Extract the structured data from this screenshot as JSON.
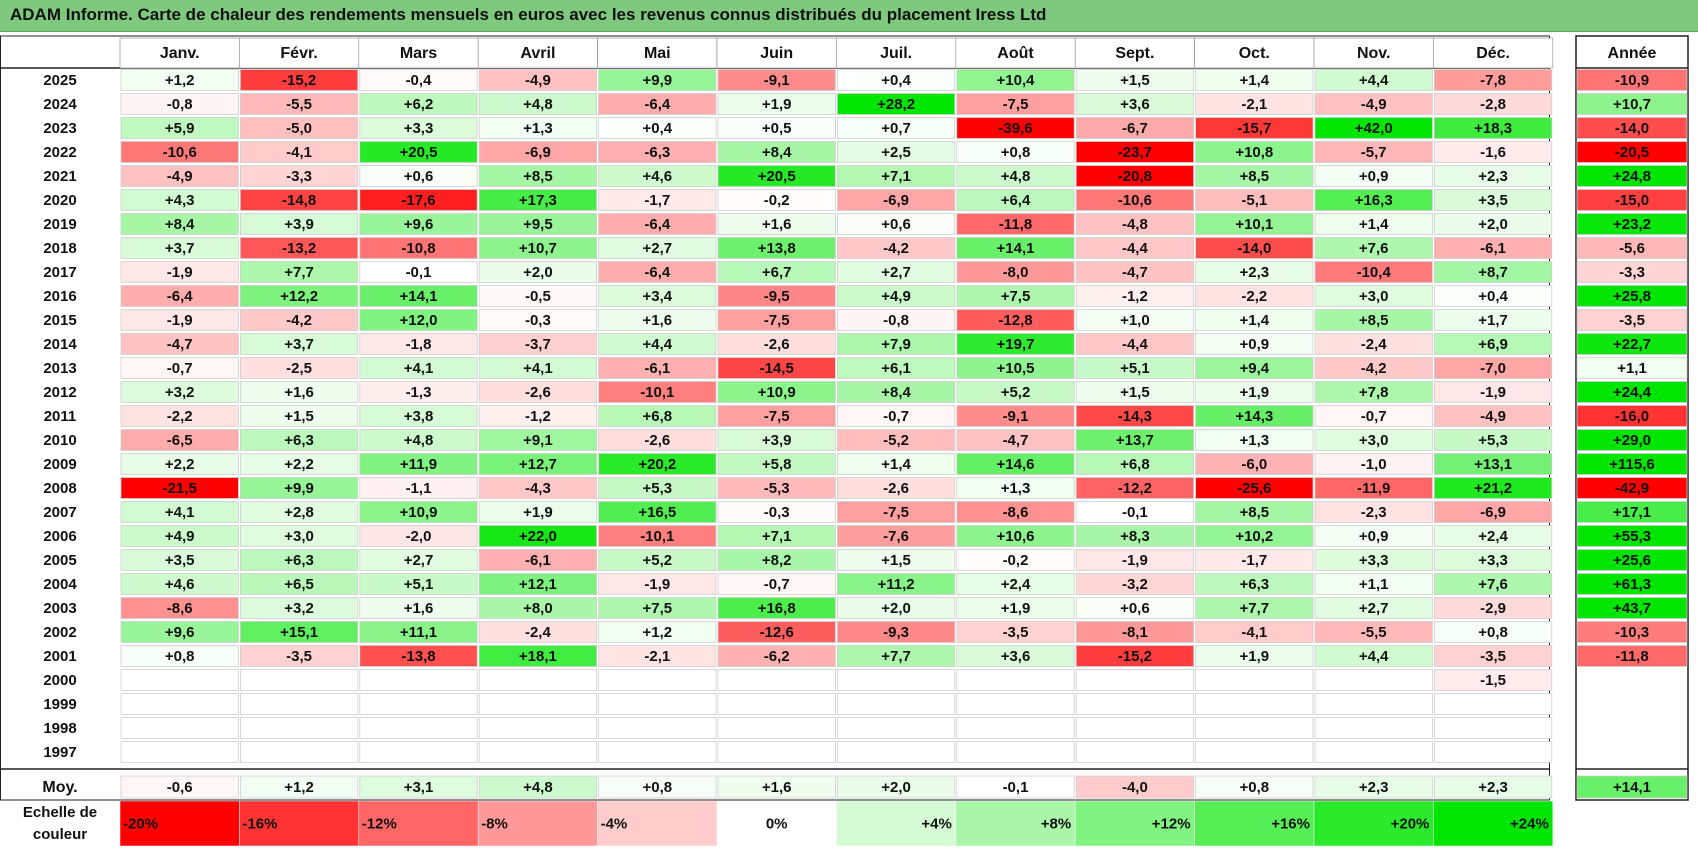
{
  "chart_data": {
    "type": "heatmap",
    "title": "ADAM Informe. Carte de chaleur des rendements mensuels en euros avec les revenus connus distribués du placement Iress Ltd",
    "columns": [
      "Janv.",
      "Févr.",
      "Mars",
      "Avril",
      "Mai",
      "Juin",
      "Juil.",
      "Août",
      "Sept.",
      "Oct.",
      "Nov.",
      "Déc."
    ],
    "year_header": "Année",
    "rows": [
      {
        "year": "2025",
        "values": [
          "+1,2",
          "-15,2",
          "-0,4",
          "-4,9",
          "+9,9",
          "-9,1",
          "+0,4",
          "+10,4",
          "+1,5",
          "+1,4",
          "+4,4",
          "-7,8"
        ],
        "annual": "-10,9"
      },
      {
        "year": "2024",
        "values": [
          "-0,8",
          "-5,5",
          "+6,2",
          "+4,8",
          "-6,4",
          "+1,9",
          "+28,2",
          "-7,5",
          "+3,6",
          "-2,1",
          "-4,9",
          "-2,8"
        ],
        "annual": "+10,7"
      },
      {
        "year": "2023",
        "values": [
          "+5,9",
          "-5,0",
          "+3,3",
          "+1,3",
          "+0,4",
          "+0,5",
          "+0,7",
          "-39,6",
          "-6,7",
          "-15,7",
          "+42,0",
          "+18,3"
        ],
        "annual": "-14,0"
      },
      {
        "year": "2022",
        "values": [
          "-10,6",
          "-4,1",
          "+20,5",
          "-6,9",
          "-6,3",
          "+8,4",
          "+2,5",
          "+0,8",
          "-23,7",
          "+10,8",
          "-5,7",
          "-1,6"
        ],
        "annual": "-20,5"
      },
      {
        "year": "2021",
        "values": [
          "-4,9",
          "-3,3",
          "+0,6",
          "+8,5",
          "+4,6",
          "+20,5",
          "+7,1",
          "+4,8",
          "-20,8",
          "+8,5",
          "+0,9",
          "+2,3"
        ],
        "annual": "+24,8"
      },
      {
        "year": "2020",
        "values": [
          "+4,3",
          "-14,8",
          "-17,6",
          "+17,3",
          "-1,7",
          "-0,2",
          "-6,9",
          "+6,4",
          "-10,6",
          "-5,1",
          "+16,3",
          "+3,5"
        ],
        "annual": "-15,0"
      },
      {
        "year": "2019",
        "values": [
          "+8,4",
          "+3,9",
          "+9,6",
          "+9,5",
          "-6,4",
          "+1,6",
          "+0,6",
          "-11,8",
          "-4,8",
          "+10,1",
          "+1,4",
          "+2,0"
        ],
        "annual": "+23,2"
      },
      {
        "year": "2018",
        "values": [
          "+3,7",
          "-13,2",
          "-10,8",
          "+10,7",
          "+2,7",
          "+13,8",
          "-4,2",
          "+14,1",
          "-4,4",
          "-14,0",
          "+7,6",
          "-6,1"
        ],
        "annual": "-5,6"
      },
      {
        "year": "2017",
        "values": [
          "-1,9",
          "+7,7",
          "-0,1",
          "+2,0",
          "-6,4",
          "+6,7",
          "+2,7",
          "-8,0",
          "-4,7",
          "+2,3",
          "-10,4",
          "+8,7"
        ],
        "annual": "-3,3"
      },
      {
        "year": "2016",
        "values": [
          "-6,4",
          "+12,2",
          "+14,1",
          "-0,5",
          "+3,4",
          "-9,5",
          "+4,9",
          "+7,5",
          "-1,2",
          "-2,2",
          "+3,0",
          "+0,4"
        ],
        "annual": "+25,8"
      },
      {
        "year": "2015",
        "values": [
          "-1,9",
          "-4,2",
          "+12,0",
          "-0,3",
          "+1,6",
          "-7,5",
          "-0,8",
          "-12,8",
          "+1,0",
          "+1,4",
          "+8,5",
          "+1,7"
        ],
        "annual": "-3,5"
      },
      {
        "year": "2014",
        "values": [
          "-4,7",
          "+3,7",
          "-1,8",
          "-3,7",
          "+4,4",
          "-2,6",
          "+7,9",
          "+19,7",
          "-4,4",
          "+0,9",
          "-2,4",
          "+6,9"
        ],
        "annual": "+22,7"
      },
      {
        "year": "2013",
        "values": [
          "-0,7",
          "-2,5",
          "+4,1",
          "+4,1",
          "-6,1",
          "-14,5",
          "+6,1",
          "+10,5",
          "+5,1",
          "+9,4",
          "-4,2",
          "-7,0"
        ],
        "annual": "+1,1"
      },
      {
        "year": "2012",
        "values": [
          "+3,2",
          "+1,6",
          "-1,3",
          "-2,6",
          "-10,1",
          "+10,9",
          "+8,4",
          "+5,2",
          "+1,5",
          "+1,9",
          "+7,8",
          "-1,9"
        ],
        "annual": "+24,4"
      },
      {
        "year": "2011",
        "values": [
          "-2,2",
          "+1,5",
          "+3,8",
          "-1,2",
          "+6,8",
          "-7,5",
          "-0,7",
          "-9,1",
          "-14,3",
          "+14,3",
          "-0,7",
          "-4,9"
        ],
        "annual": "-16,0"
      },
      {
        "year": "2010",
        "values": [
          "-6,5",
          "+6,3",
          "+4,8",
          "+9,1",
          "-2,6",
          "+3,9",
          "-5,2",
          "-4,7",
          "+13,7",
          "+1,3",
          "+3,0",
          "+5,3"
        ],
        "annual": "+29,0"
      },
      {
        "year": "2009",
        "values": [
          "+2,2",
          "+2,2",
          "+11,9",
          "+12,7",
          "+20,2",
          "+5,8",
          "+1,4",
          "+14,6",
          "+6,8",
          "-6,0",
          "-1,0",
          "+13,1"
        ],
        "annual": "+115,6"
      },
      {
        "year": "2008",
        "values": [
          "-21,5",
          "+9,9",
          "-1,1",
          "-4,3",
          "+5,3",
          "-5,3",
          "-2,6",
          "+1,3",
          "-12,2",
          "-25,6",
          "-11,9",
          "+21,2"
        ],
        "annual": "-42,9"
      },
      {
        "year": "2007",
        "values": [
          "+4,1",
          "+2,8",
          "+10,9",
          "+1,9",
          "+16,5",
          "-0,3",
          "-7,5",
          "-8,6",
          "-0,1",
          "+8,5",
          "-2,3",
          "-6,9"
        ],
        "annual": "+17,1"
      },
      {
        "year": "2006",
        "values": [
          "+4,9",
          "+3,0",
          "-2,0",
          "+22,0",
          "-10,1",
          "+7,1",
          "-7,6",
          "+10,6",
          "+8,3",
          "+10,2",
          "+0,9",
          "+2,4"
        ],
        "annual": "+55,3"
      },
      {
        "year": "2005",
        "values": [
          "+3,5",
          "+6,3",
          "+2,7",
          "-6,1",
          "+5,2",
          "+8,2",
          "+1,5",
          "-0,2",
          "-1,9",
          "-1,7",
          "+3,3",
          "+3,3"
        ],
        "annual": "+25,6"
      },
      {
        "year": "2004",
        "values": [
          "+4,6",
          "+6,5",
          "+5,1",
          "+12,1",
          "-1,9",
          "-0,7",
          "+11,2",
          "+2,4",
          "-3,2",
          "+6,3",
          "+1,1",
          "+7,6"
        ],
        "annual": "+61,3"
      },
      {
        "year": "2003",
        "values": [
          "-8,6",
          "+3,2",
          "+1,6",
          "+8,0",
          "+7,5",
          "+16,8",
          "+2,0",
          "+1,9",
          "+0,6",
          "+7,7",
          "+2,7",
          "-2,9"
        ],
        "annual": "+43,7"
      },
      {
        "year": "2002",
        "values": [
          "+9,6",
          "+15,1",
          "+11,1",
          "-2,4",
          "+1,2",
          "-12,6",
          "-9,3",
          "-3,5",
          "-8,1",
          "-4,1",
          "-5,5",
          "+0,8"
        ],
        "annual": "-10,3"
      },
      {
        "year": "2001",
        "values": [
          "+0,8",
          "-3,5",
          "-13,8",
          "+18,1",
          "-2,1",
          "-6,2",
          "+7,7",
          "+3,6",
          "-15,2",
          "+1,9",
          "+4,4",
          "-3,5"
        ],
        "annual": "-11,8"
      },
      {
        "year": "2000",
        "values": [
          "",
          "",
          "",
          "",
          "",
          "",
          "",
          "",
          "",
          "",
          "",
          "-1,5"
        ],
        "annual": ""
      },
      {
        "year": "1999",
        "values": [
          "",
          "",
          "",
          "",
          "",
          "",
          "",
          "",
          "",
          "",
          "",
          ""
        ],
        "annual": ""
      },
      {
        "year": "1998",
        "values": [
          "",
          "",
          "",
          "",
          "",
          "",
          "",
          "",
          "",
          "",
          "",
          ""
        ],
        "annual": ""
      },
      {
        "year": "1997",
        "values": [
          "",
          "",
          "",
          "",
          "",
          "",
          "",
          "",
          "",
          "",
          "",
          ""
        ],
        "annual": ""
      }
    ],
    "average": {
      "label": "Moy.",
      "values": [
        "-0,6",
        "+1,2",
        "+3,1",
        "+4,8",
        "+0,8",
        "+1,6",
        "+2,0",
        "-0,1",
        "-4,0",
        "+0,8",
        "+2,3",
        "+2,3"
      ],
      "annual": "+14,1"
    },
    "scale": {
      "label_line1": "Echelle de",
      "label_line2": "couleur",
      "stops": [
        "-20%",
        "-16%",
        "-12%",
        "-8%",
        "-4%",
        "0%",
        "+4%",
        "+8%",
        "+12%",
        "+16%",
        "+20%",
        "+24%"
      ],
      "stop_values": [
        -20,
        -16,
        -12,
        -8,
        -4,
        0,
        4,
        8,
        12,
        16,
        20,
        24
      ]
    },
    "colors": {
      "negative_max": "#ff0000",
      "zero": "#ffffff",
      "positive_max": "#00e600",
      "title_bar": "#7fc97f"
    }
  }
}
